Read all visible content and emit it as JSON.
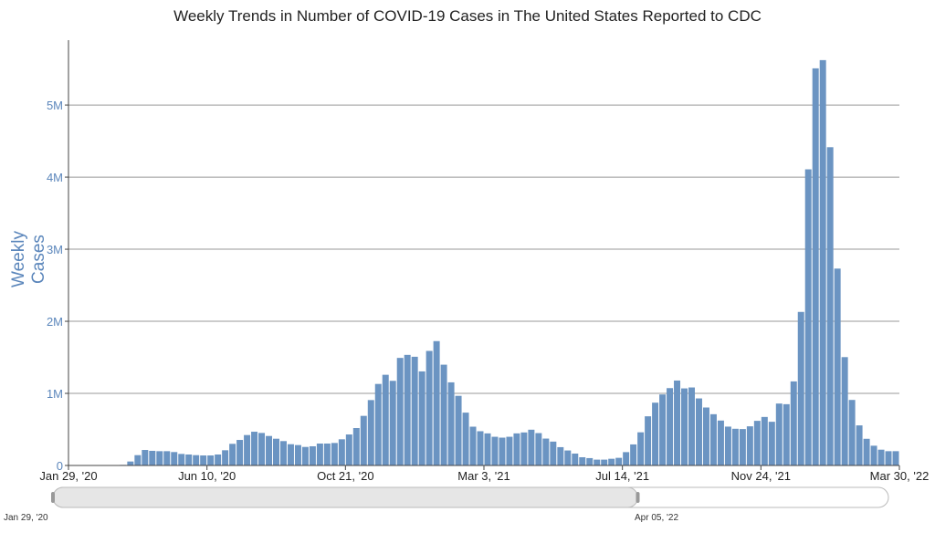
{
  "chart_data": {
    "type": "bar",
    "title": "Weekly Trends in Number of COVID-19 Cases in The United States Reported to CDC",
    "ylabel": "Weekly Cases",
    "xlabel": "",
    "ylim": [
      0,
      5900000
    ],
    "y_ticks": [
      {
        "value": 0,
        "label": "0"
      },
      {
        "value": 1000000,
        "label": "1M"
      },
      {
        "value": 2000000,
        "label": "2M"
      },
      {
        "value": 3000000,
        "label": "3M"
      },
      {
        "value": 4000000,
        "label": "4M"
      },
      {
        "value": 5000000,
        "label": "5M"
      }
    ],
    "x_ticks": [
      {
        "week_index": 0,
        "label": "Jan 29, '20"
      },
      {
        "week_index": 19,
        "label": "Jun 10, '20"
      },
      {
        "week_index": 38,
        "label": "Oct 21, '20"
      },
      {
        "week_index": 57,
        "label": "Mar 3, '21"
      },
      {
        "week_index": 76,
        "label": "Jul 14, '21"
      },
      {
        "week_index": 95,
        "label": "Nov 24, '21"
      },
      {
        "week_index": 114,
        "label": "Mar 30, '22"
      }
    ],
    "grid": true,
    "bar_color": "#6b94c2",
    "values": [
      0,
      0,
      0,
      0,
      0,
      1000,
      3000,
      8000,
      55000,
      143000,
      215000,
      203000,
      198000,
      198000,
      186000,
      160000,
      152000,
      143000,
      139000,
      139000,
      152000,
      211000,
      300000,
      354000,
      422000,
      468000,
      451000,
      409000,
      371000,
      338000,
      295000,
      283000,
      257000,
      266000,
      304000,
      304000,
      312000,
      363000,
      430000,
      519000,
      688000,
      907000,
      1131000,
      1258000,
      1174000,
      1492000,
      1534000,
      1508000,
      1305000,
      1589000,
      1725000,
      1398000,
      1153000,
      966000,
      733000,
      538000,
      475000,
      445000,
      398000,
      386000,
      398000,
      445000,
      458000,
      496000,
      449000,
      373000,
      331000,
      254000,
      208000,
      165000,
      114000,
      102000,
      81000,
      81000,
      93000,
      106000,
      185000,
      292000,
      460000,
      682000,
      871000,
      985000,
      1073000,
      1178000,
      1069000,
      1082000,
      930000,
      804000,
      711000,
      623000,
      539000,
      509000,
      505000,
      543000,
      619000,
      673000,
      606000,
      859000,
      850000,
      1166000,
      2130000,
      4108000,
      5509000,
      5623000,
      4415000,
      2731000,
      1503000,
      909000,
      556000,
      370000,
      274000,
      219000,
      198000,
      198000
    ]
  },
  "range_slider": {
    "start_label": "Jan 29, '20",
    "end_label": "Apr 05, '22",
    "selected_fraction": [
      0,
      0.7
    ]
  }
}
